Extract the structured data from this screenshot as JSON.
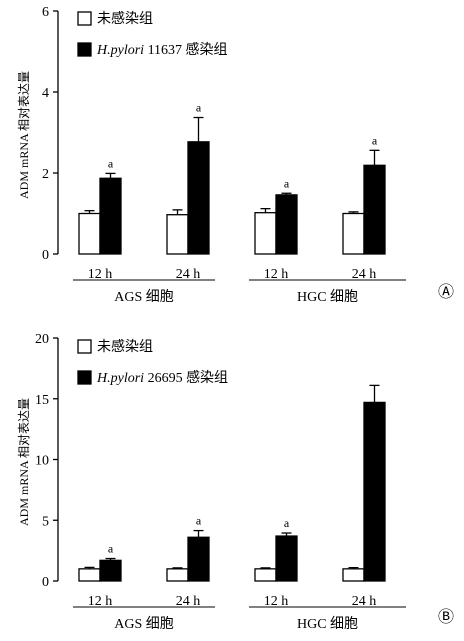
{
  "chart_data": [
    {
      "type": "bar",
      "panel_label": "Ⓐ",
      "ylabel": "ADM mRNA 相对表达量",
      "ylim": [
        0,
        6
      ],
      "yticks": [
        "0",
        "2",
        "4",
        "6"
      ],
      "categories": [
        "12 h",
        "24 h",
        "12 h",
        "24 h"
      ],
      "groups": [
        {
          "label": "AGS 细胞",
          "categories": [
            "12 h",
            "24 h"
          ]
        },
        {
          "label": "HGC 细胞",
          "categories": [
            "12 h",
            "24 h"
          ]
        }
      ],
      "legend": {
        "position": "top-left"
      },
      "series": [
        {
          "name": "未感染组",
          "fill": "#ffffff",
          "values": [
            1.0,
            0.97,
            1.02,
            1.0
          ],
          "errors": [
            0.07,
            0.12,
            0.1,
            0.04
          ]
        },
        {
          "name_prefix": "H.pylori",
          "name_suffix": " 11637 感染组",
          "fill": "#000000",
          "values": [
            1.87,
            2.77,
            1.46,
            2.19
          ],
          "errors": [
            0.12,
            0.6,
            0.04,
            0.37
          ]
        }
      ],
      "annotations": [
        {
          "series": 1,
          "category": 0,
          "text": "a"
        },
        {
          "series": 1,
          "category": 1,
          "text": "a"
        },
        {
          "series": 1,
          "category": 2,
          "text": "a"
        },
        {
          "series": 1,
          "category": 3,
          "text": "a"
        }
      ]
    },
    {
      "type": "bar",
      "panel_label": "Ⓑ",
      "ylabel": "ADM mRNA 相对表达量",
      "ylim": [
        0,
        20
      ],
      "yticks": [
        "0",
        "5",
        "10",
        "15",
        "20"
      ],
      "categories": [
        "12 h",
        "24 h",
        "12 h",
        "24 h"
      ],
      "groups": [
        {
          "label": "AGS 细胞",
          "categories": [
            "12 h",
            "24 h"
          ]
        },
        {
          "label": "HGC 细胞",
          "categories": [
            "12 h",
            "24 h"
          ]
        }
      ],
      "legend": {
        "position": "top-left"
      },
      "series": [
        {
          "name": "未感染组",
          "fill": "#ffffff",
          "values": [
            1.0,
            1.0,
            1.0,
            1.0
          ],
          "errors": [
            0.12,
            0.08,
            0.08,
            0.1
          ]
        },
        {
          "name_prefix": "H.pylori",
          "name_suffix": " 26695 感染组",
          "fill": "#000000",
          "values": [
            1.7,
            3.6,
            3.7,
            14.7
          ],
          "errors": [
            0.15,
            0.55,
            0.25,
            1.4
          ]
        }
      ],
      "annotations": [
        {
          "series": 1,
          "category": 0,
          "text": "a"
        },
        {
          "series": 1,
          "category": 1,
          "text": "a"
        },
        {
          "series": 1,
          "category": 2,
          "text": "a"
        }
      ]
    }
  ]
}
